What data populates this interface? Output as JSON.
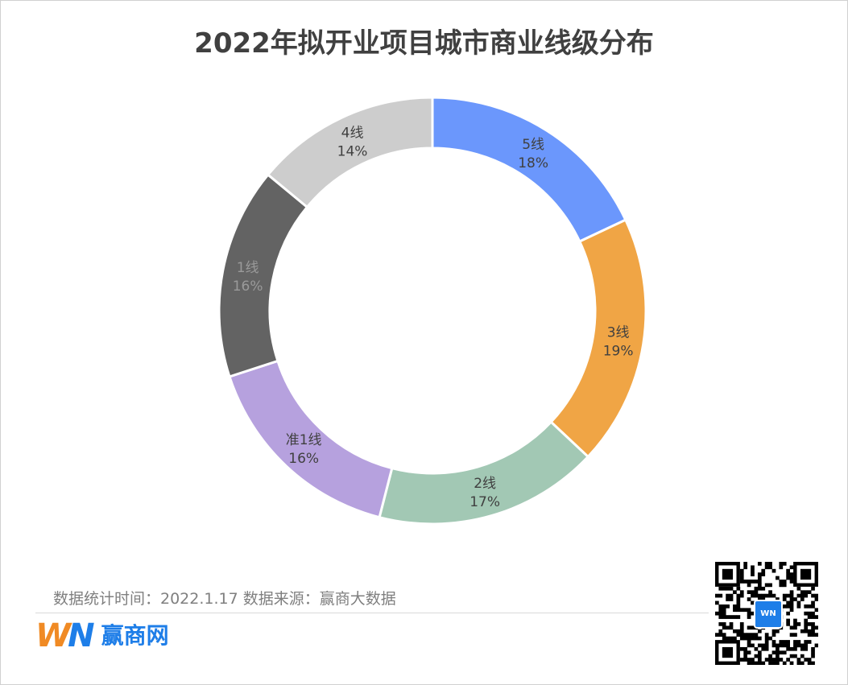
{
  "title": "2022年拟开业项目城市商业线级分布",
  "chart_data": {
    "type": "pie",
    "style": "donut",
    "title": "2022年拟开业项目城市商业线级分布",
    "slices": [
      {
        "label": "5线",
        "value": 18,
        "pct_label": "18%",
        "color": "#6b97fc"
      },
      {
        "label": "3线",
        "value": 19,
        "pct_label": "19%",
        "color": "#f0a545"
      },
      {
        "label": "2线",
        "value": 17,
        "pct_label": "17%",
        "color": "#a2c8b4"
      },
      {
        "label": "准1线",
        "value": 16,
        "pct_label": "16%",
        "color": "#b6a1de"
      },
      {
        "label": "1线",
        "value": 16,
        "pct_label": "16%",
        "color": "#636363"
      },
      {
        "label": "4线",
        "value": 14,
        "pct_label": "14%",
        "color": "#cdcdcd"
      }
    ]
  },
  "footer": {
    "source_text": "数据统计时间：2022.1.17  数据来源：赢商大数据"
  },
  "logo": {
    "mark_w": "W",
    "mark_n": "N",
    "text": "赢商网"
  },
  "qr": {
    "badge_text": "WN"
  }
}
